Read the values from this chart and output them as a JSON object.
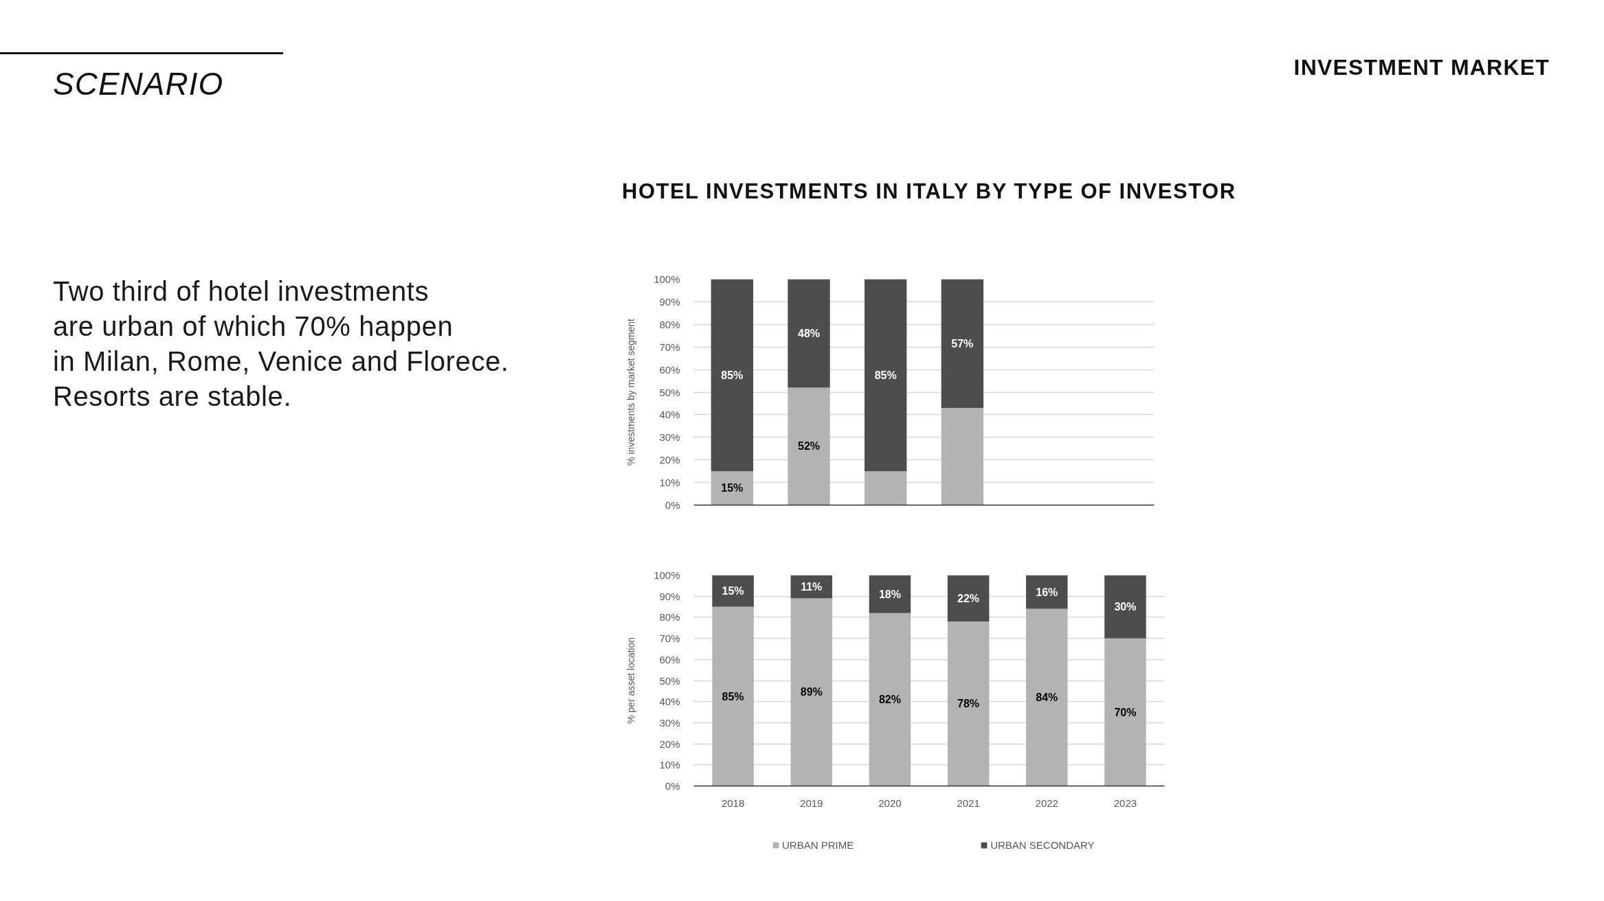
{
  "chart_data": [
    {
      "type": "other",
      "title": "SCENARIO",
      "subtitle": "INVESTMENT MARKET",
      "annotations": [
        "Two third of hotel investments\nare urban of which 70% happen\nin Milan, Rome, Venice and Florece.\nResorts are stable."
      ]
    },
    {
      "type": "bar",
      "title": "HOTEL INVESTMENTS IN ITALY BY TYPE OF INVESTOR",
      "ylabel": "% investments by market segment",
      "categories": [
        null,
        null,
        null,
        null,
        null,
        null
      ],
      "stacked": true,
      "series": [
        {
          "color": "#b3b3b3",
          "values": [
            15,
            52,
            15,
            43,
            null,
            null
          ],
          "value_labels": [
            "15%",
            "52%",
            null,
            null,
            null,
            null
          ]
        },
        {
          "color": "#4d4d4d",
          "values": [
            85,
            48,
            85,
            57,
            null,
            null
          ],
          "value_labels": [
            "85%",
            "48%",
            "85%",
            "57%",
            null,
            null
          ]
        }
      ],
      "ylim": [
        0,
        100
      ],
      "yticks": [
        {
          "value": 0,
          "label": "0%"
        },
        {
          "value": 10,
          "label": "10%"
        },
        {
          "value": 20,
          "label": "20%"
        },
        {
          "value": 30,
          "label": "30%"
        },
        {
          "value": 40,
          "label": "40%"
        },
        {
          "value": 50,
          "label": "50%"
        },
        {
          "value": 60,
          "label": "60%"
        },
        {
          "value": 70,
          "label": "70%"
        },
        {
          "value": 80,
          "label": "80%"
        },
        {
          "value": 90,
          "label": "90%"
        },
        {
          "value": 100,
          "label": "100%"
        }
      ],
      "grid": "y",
      "tick_labels": "y"
    },
    {
      "type": "bar",
      "ylabel": "% per asset location",
      "categories": [
        "2018",
        "2019",
        "2020",
        "2021",
        "2022",
        "2023"
      ],
      "stacked": true,
      "series": [
        {
          "name": "URBAN PRIME",
          "color": "#b3b3b3",
          "values": [
            85,
            89,
            82,
            78,
            84,
            70
          ],
          "value_labels": [
            "85%",
            "89%",
            "82%",
            "78%",
            "84%",
            "70%"
          ]
        },
        {
          "name": "URBAN SECONDARY",
          "color": "#4d4d4d",
          "values": [
            15,
            11,
            18,
            22,
            16,
            30
          ],
          "value_labels": [
            "15%",
            "11%",
            "18%",
            "22%",
            "16%",
            "30%"
          ]
        }
      ],
      "ylim": [
        0,
        100
      ],
      "yticks": [
        {
          "value": 0,
          "label": "0%"
        },
        {
          "value": 10,
          "label": "10%"
        },
        {
          "value": 20,
          "label": "20%"
        },
        {
          "value": 30,
          "label": "30%"
        },
        {
          "value": 40,
          "label": "40%"
        },
        {
          "value": 50,
          "label": "50%"
        },
        {
          "value": 60,
          "label": "60%"
        },
        {
          "value": 70,
          "label": "70%"
        },
        {
          "value": 80,
          "label": "80%"
        },
        {
          "value": 90,
          "label": "90%"
        },
        {
          "value": 100,
          "label": "100%"
        }
      ],
      "grid": "y",
      "legend": "bottom"
    }
  ]
}
